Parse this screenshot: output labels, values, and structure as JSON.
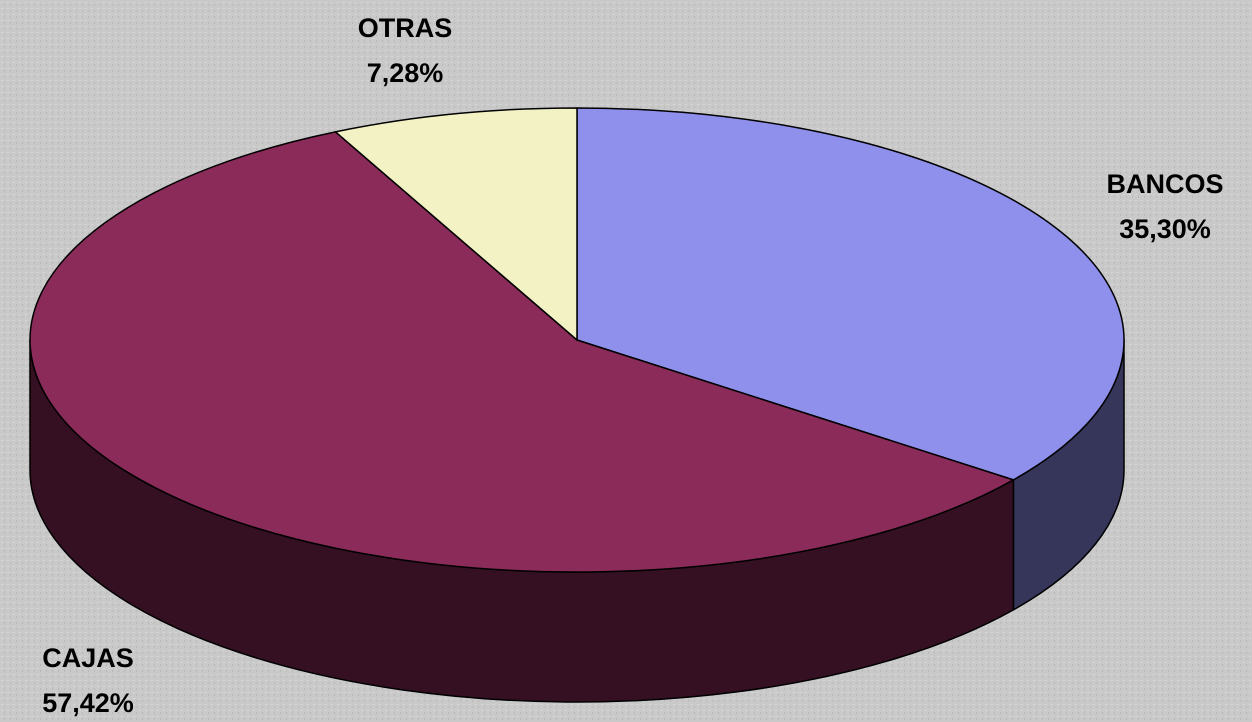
{
  "chart_data": {
    "type": "pie3d",
    "categories": [
      "BANCOS",
      "CAJAS",
      "OTRAS"
    ],
    "values": [
      35.3,
      57.42,
      7.28
    ],
    "value_labels": [
      "35,30%",
      "57,42%",
      "7,28%"
    ],
    "colors": [
      "#8f8fec",
      "#8a2b5a",
      "#f2f2c4"
    ]
  }
}
